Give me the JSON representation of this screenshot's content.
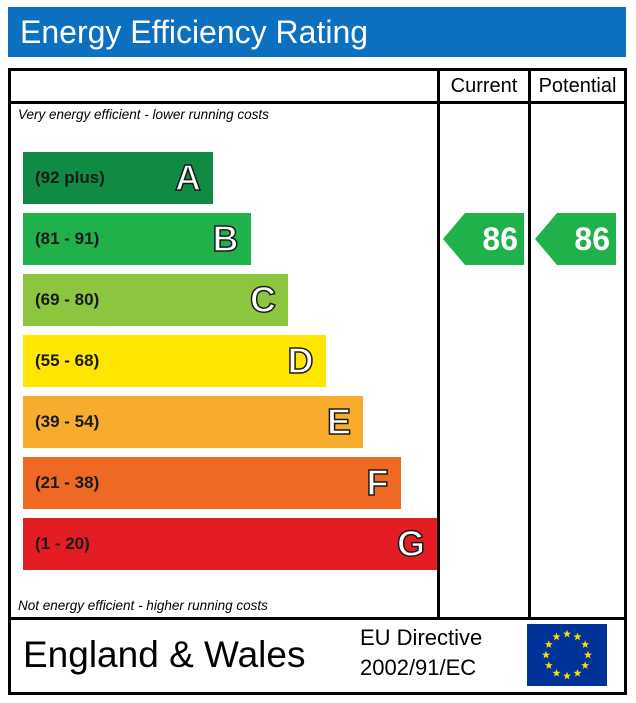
{
  "header": {
    "title": "Energy Efficiency Rating"
  },
  "columns": {
    "current": "Current",
    "potential": "Potential"
  },
  "notes": {
    "top": "Very energy efficient - lower running costs",
    "bottom": "Not energy efficient - higher running costs"
  },
  "chart_data": {
    "type": "bar",
    "title": "Energy Efficiency Rating",
    "categories": [
      "A",
      "B",
      "C",
      "D",
      "E",
      "F",
      "G"
    ],
    "bands": [
      {
        "letter": "A",
        "range": "(92 plus)",
        "color": "#0f8b43"
      },
      {
        "letter": "B",
        "range": "(81 - 91)",
        "color": "#21b14b"
      },
      {
        "letter": "C",
        "range": "(69 - 80)",
        "color": "#8cc63f"
      },
      {
        "letter": "D",
        "range": "(55 - 68)",
        "color": "#ffe600"
      },
      {
        "letter": "E",
        "range": "(39 - 54)",
        "color": "#f7ac2d"
      },
      {
        "letter": "F",
        "range": "(21 - 38)",
        "color": "#ee6a24"
      },
      {
        "letter": "G",
        "range": "(1 - 20)",
        "color": "#e31d23"
      }
    ],
    "series": [
      {
        "name": "Current",
        "value": 86,
        "band": "B"
      },
      {
        "name": "Potential",
        "value": 86,
        "band": "B"
      }
    ]
  },
  "footer": {
    "region": "England & Wales",
    "directive_line1": "EU Directive",
    "directive_line2": "2002/91/EC"
  },
  "colors": {
    "header_bg": "#0a70bf",
    "eu_blue": "#003399",
    "eu_star": "#ffdd00"
  },
  "icons": {
    "flag": "eu-flag-icon"
  }
}
